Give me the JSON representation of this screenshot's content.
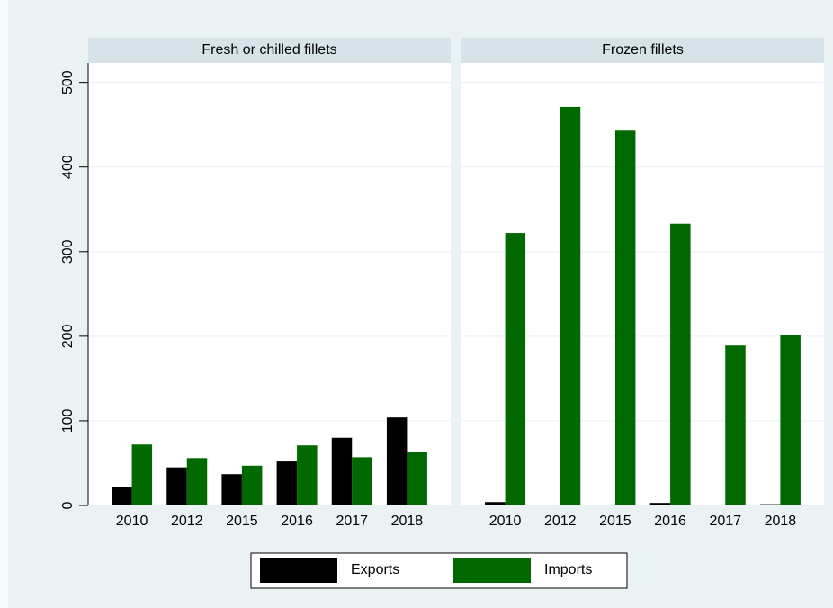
{
  "chart_data": {
    "type": "bar",
    "categories": [
      "2010",
      "2012",
      "2015",
      "2016",
      "2017",
      "2018"
    ],
    "series": [
      {
        "name": "Exports",
        "color": "#000000"
      },
      {
        "name": "Imports",
        "color": "#006a00"
      }
    ],
    "panels": [
      {
        "title": "Fresh or chilled fillets",
        "values": [
          [
            22,
            45,
            37,
            52,
            80,
            104
          ],
          [
            72,
            56,
            47,
            71,
            57,
            63
          ]
        ]
      },
      {
        "title": "Frozen fillets",
        "values": [
          [
            4,
            1,
            1,
            3,
            0.5,
            1.5
          ],
          [
            322,
            471,
            443,
            333,
            189,
            202
          ]
        ]
      }
    ],
    "ylim": [
      0,
      523
    ],
    "yticks": [
      0,
      100,
      200,
      300,
      400,
      500
    ],
    "grid": true
  }
}
